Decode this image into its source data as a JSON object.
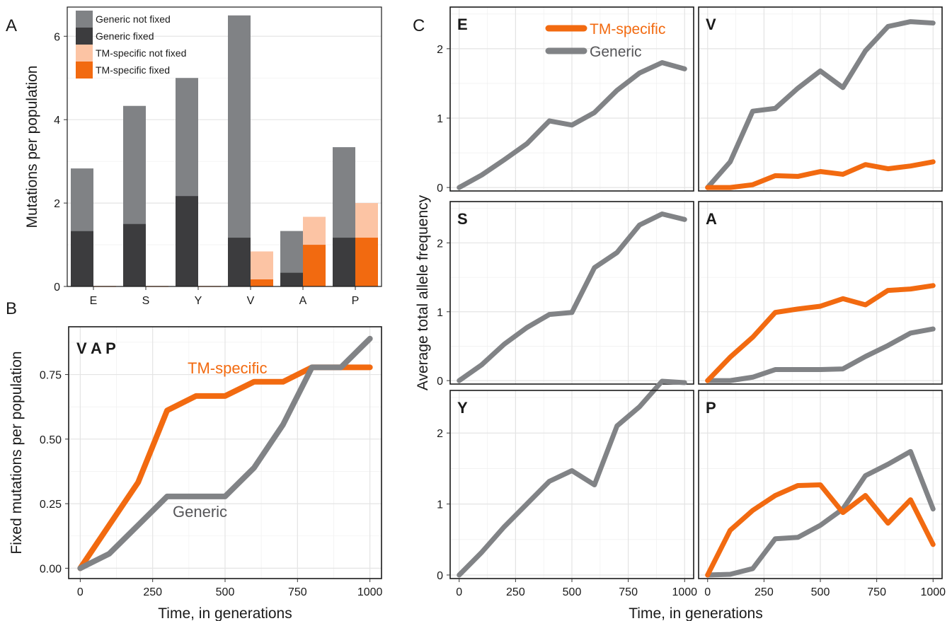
{
  "figure": {
    "panel_labels": [
      "A",
      "B",
      "C"
    ]
  },
  "colors": {
    "generic_not_fixed": "#808285",
    "generic_fixed": "#3c3c3e",
    "tm_not_fixed": "#fcc4a4",
    "tm_fixed": "#f26a10",
    "tm_line": "#f26a10",
    "generic_line": "#818386"
  },
  "chart_data": [
    {
      "panel": "A",
      "type": "bar",
      "ylabel": "Mutations per population",
      "xlabel": "",
      "categories": [
        "E",
        "S",
        "Y",
        "V",
        "A",
        "P"
      ],
      "ylim": [
        0,
        6.7
      ],
      "yticks": [
        "0",
        "2",
        "4",
        "6"
      ],
      "series": [
        {
          "name": "Generic not fixed",
          "values": [
            1.5,
            2.83,
            2.83,
            5.33,
            1.0,
            2.17
          ]
        },
        {
          "name": "Generic fixed",
          "values": [
            1.33,
            1.5,
            2.17,
            1.17,
            0.33,
            1.17
          ]
        },
        {
          "name": "TM-specific not fixed",
          "values": [
            0,
            0,
            0,
            0.67,
            0.67,
            0.83
          ]
        },
        {
          "name": "TM-specific fixed",
          "values": [
            0,
            0,
            0,
            0.17,
            1.0,
            1.17
          ]
        }
      ],
      "stacking": "generic bars stack fixed below not fixed; TM bars stack fixed below not fixed",
      "legend": "top-left"
    },
    {
      "panel": "B",
      "type": "line",
      "facet_label": "V A P",
      "xlabel": "Time, in generations",
      "ylabel": "Fixed mutations per population",
      "x": [
        0,
        100,
        200,
        300,
        400,
        500,
        600,
        700,
        800,
        900,
        1000
      ],
      "xlim": [
        -40,
        1040
      ],
      "ylim": [
        -0.04,
        0.935
      ],
      "xticks": [
        "0",
        "250",
        "500",
        "750",
        "1000"
      ],
      "yticks": [
        "0.00",
        "0.25",
        "0.50",
        "0.75"
      ],
      "series": [
        {
          "name": "TM-specific",
          "values": [
            0,
            0.167,
            0.333,
            0.611,
            0.667,
            0.667,
            0.722,
            0.722,
            0.778,
            0.778,
            0.778
          ]
        },
        {
          "name": "Generic",
          "values": [
            0,
            0.056,
            0.167,
            0.278,
            0.278,
            0.278,
            0.389,
            0.556,
            0.778,
            0.778,
            0.889
          ]
        }
      ],
      "annotations": [
        "TM-specific",
        "Generic"
      ]
    },
    {
      "panel": "C",
      "type": "line",
      "xlabel": "Time, in generations",
      "ylabel": "Average total allele frequency",
      "x": [
        0,
        100,
        200,
        300,
        400,
        500,
        600,
        700,
        800,
        900,
        1000
      ],
      "xlim": [
        -40,
        1040
      ],
      "ylim": [
        -0.05,
        2.6
      ],
      "xticks": [
        "0",
        "250",
        "500",
        "750",
        "1000"
      ],
      "yticks": [
        "0",
        "1",
        "2"
      ],
      "legend": {
        "entries": [
          "TM-specific",
          "Generic"
        ],
        "placement": "top of panel E"
      },
      "facets": [
        {
          "label": "E",
          "series": [
            {
              "name": "Generic",
              "values": [
                0,
                0.18,
                0.4,
                0.63,
                0.96,
                0.9,
                1.08,
                1.4,
                1.65,
                1.8,
                1.71
              ]
            }
          ]
        },
        {
          "label": "V",
          "series": [
            {
              "name": "TM-specific",
              "values": [
                0,
                0,
                0.04,
                0.17,
                0.16,
                0.23,
                0.19,
                0.33,
                0.27,
                0.31,
                0.37
              ]
            },
            {
              "name": "Generic",
              "values": [
                0,
                0.37,
                1.1,
                1.14,
                1.43,
                1.68,
                1.44,
                1.97,
                2.32,
                2.39,
                2.37
              ]
            }
          ]
        },
        {
          "label": "S",
          "series": [
            {
              "name": "Generic",
              "values": [
                0,
                0.23,
                0.53,
                0.77,
                0.96,
                0.99,
                1.64,
                1.86,
                2.26,
                2.42,
                2.34
              ]
            }
          ]
        },
        {
          "label": "A",
          "series": [
            {
              "name": "TM-specific",
              "values": [
                0,
                0.34,
                0.63,
                0.99,
                1.04,
                1.08,
                1.19,
                1.1,
                1.31,
                1.33,
                1.38
              ]
            },
            {
              "name": "Generic",
              "values": [
                0,
                0,
                0.05,
                0.16,
                0.16,
                0.16,
                0.17,
                0.35,
                0.51,
                0.69,
                0.75
              ]
            }
          ]
        },
        {
          "label": "Y",
          "series": [
            {
              "name": "Generic",
              "values": [
                0,
                0.32,
                0.68,
                1.0,
                1.32,
                1.47,
                1.27,
                2.1,
                2.37,
                2.73,
                2.71
              ]
            }
          ]
        },
        {
          "label": "P",
          "series": [
            {
              "name": "TM-specific",
              "values": [
                0,
                0.63,
                0.91,
                1.12,
                1.26,
                1.27,
                0.88,
                1.12,
                0.73,
                1.06,
                0.43
              ]
            },
            {
              "name": "Generic",
              "values": [
                0,
                0.01,
                0.09,
                0.51,
                0.53,
                0.7,
                0.93,
                1.4,
                1.56,
                1.74,
                0.93
              ]
            }
          ]
        }
      ]
    }
  ]
}
